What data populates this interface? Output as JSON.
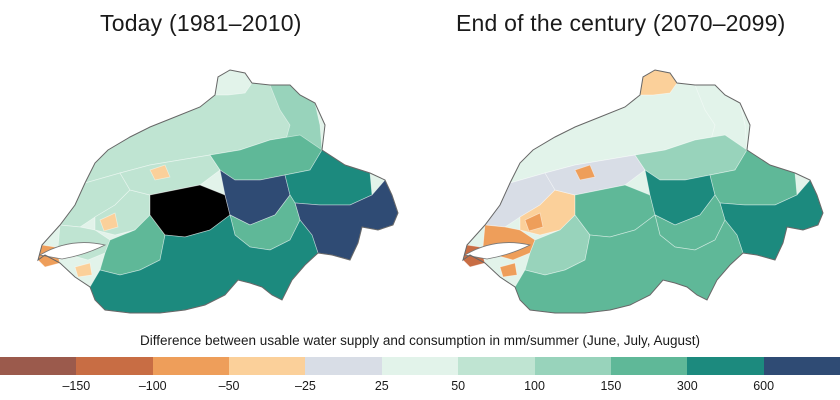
{
  "maps": [
    {
      "title": "Today (1981–2010)",
      "regions": {
        "north_plateau": 6,
        "west_jura": 6,
        "lake_geneva": 6,
        "fribourg": 6,
        "bern_plateau": 6,
        "orange_patches": 3,
        "ticino_south": 9,
        "valais_west": 8,
        "bernese_alps": 11,
        "central_alps": 10,
        "graubuenden_north": 9,
        "graubuenden_south": 10,
        "ticino_north": 8,
        "geneva_tip": 2,
        "schaffhausen": 5,
        "northeast": 7,
        "central_east": 8
      }
    },
    {
      "title": "End of the century (2070–2099)",
      "regions": {
        "north_plateau": 5,
        "west_jura": 4,
        "lake_geneva": 2,
        "fribourg": 3,
        "bern_plateau": 4,
        "orange_patches": 2,
        "ticino_south": 8,
        "valais_west": 7,
        "bernese_alps": 8,
        "central_alps": 9,
        "graubuenden_north": 8,
        "graubuenden_south": 9,
        "ticino_north": 8,
        "geneva_tip": 1,
        "schaffhausen": 3,
        "northeast": 5,
        "central_east": 7
      }
    }
  ],
  "legend": {
    "caption": "Difference between usable water supply and consumption in mm/summer (June, July, August)",
    "colors": [
      "#9b5a4c",
      "#c86d44",
      "#ee9e5a",
      "#fbd09a",
      "#d8dde6",
      "#e2f3ea",
      "#bfe4d2",
      "#98d3bb",
      "#5fb898",
      "#1c8a7e",
      "#2f4b74"
    ],
    "ticks": [
      "–150",
      "–100",
      "–50",
      "–25",
      "25",
      "50",
      "100",
      "150",
      "300",
      "600"
    ]
  }
}
